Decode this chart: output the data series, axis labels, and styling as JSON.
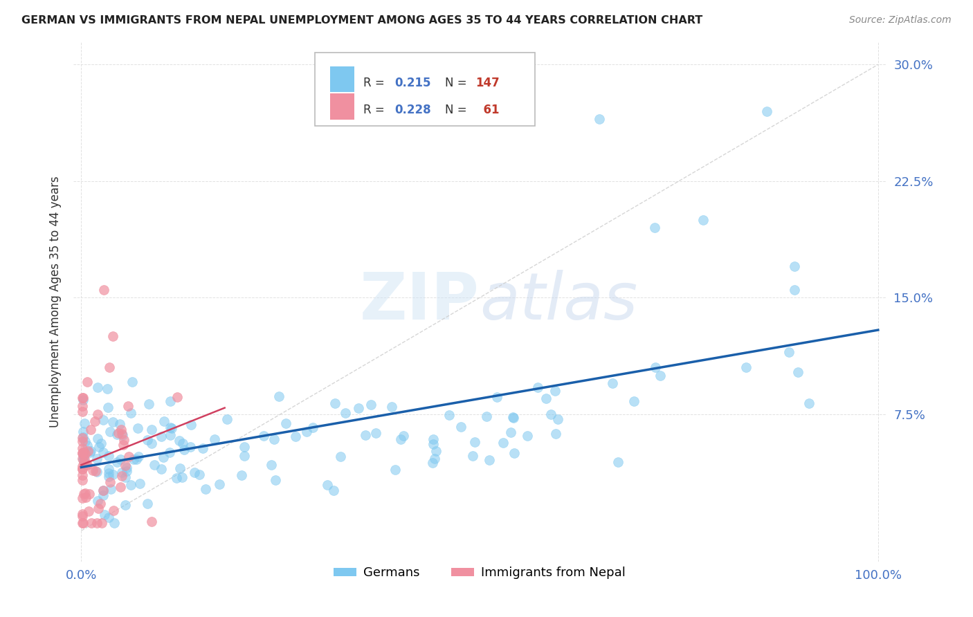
{
  "title": "GERMAN VS IMMIGRANTS FROM NEPAL UNEMPLOYMENT AMONG AGES 35 TO 44 YEARS CORRELATION CHART",
  "source": "Source: ZipAtlas.com",
  "ylabel": "Unemployment Among Ages 35 to 44 years",
  "yticks": [
    "7.5%",
    "15.0%",
    "22.5%",
    "30.0%"
  ],
  "ytick_vals": [
    0.075,
    0.15,
    0.225,
    0.3
  ],
  "legend_german_R": "0.215",
  "legend_german_N": "147",
  "legend_nepal_R": "0.228",
  "legend_nepal_N": "61",
  "legend_label_german": "Germans",
  "legend_label_nepal": "Immigrants from Nepal",
  "german_color": "#7EC8F0",
  "nepal_color": "#F090A0",
  "german_line_color": "#1A5FAA",
  "nepal_line_color": "#D04060",
  "watermark": "ZIPatlas",
  "background_color": "#ffffff",
  "R_color": "#4472C4",
  "N_color": "#C0392B"
}
